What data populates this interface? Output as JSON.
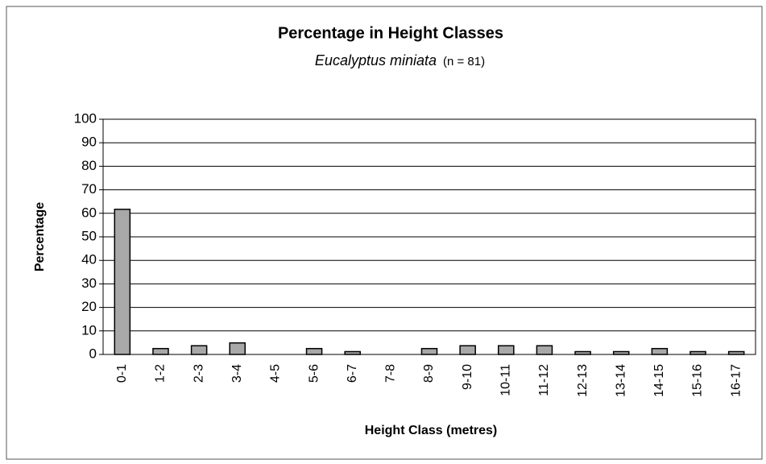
{
  "chart_data": {
    "type": "bar",
    "title": "Percentage in Height Classes",
    "subtitle": "Eucalyptus miniata",
    "annotation": "(n = 81)",
    "x_label": "Height Class (metres)",
    "y_label": "Percentage",
    "categories": [
      "0-1",
      "1-2",
      "2-3",
      "3-4",
      "4-5",
      "5-6",
      "6-7",
      "7-8",
      "8-9",
      "9-10",
      "10-11",
      "11-12",
      "12-13",
      "13-14",
      "14-15",
      "15-16",
      "16-17"
    ],
    "values": [
      61.7,
      2.5,
      3.7,
      4.9,
      0,
      2.5,
      1.2,
      0,
      2.5,
      3.7,
      3.7,
      3.7,
      1.2,
      1.2,
      2.5,
      1.2,
      1.2
    ],
    "color": "#a8a8a8",
    "ylim": [
      0,
      100
    ],
    "yticks": [
      0,
      10,
      20,
      30,
      40,
      50,
      60,
      70,
      80,
      90,
      100
    ],
    "grid": true
  }
}
